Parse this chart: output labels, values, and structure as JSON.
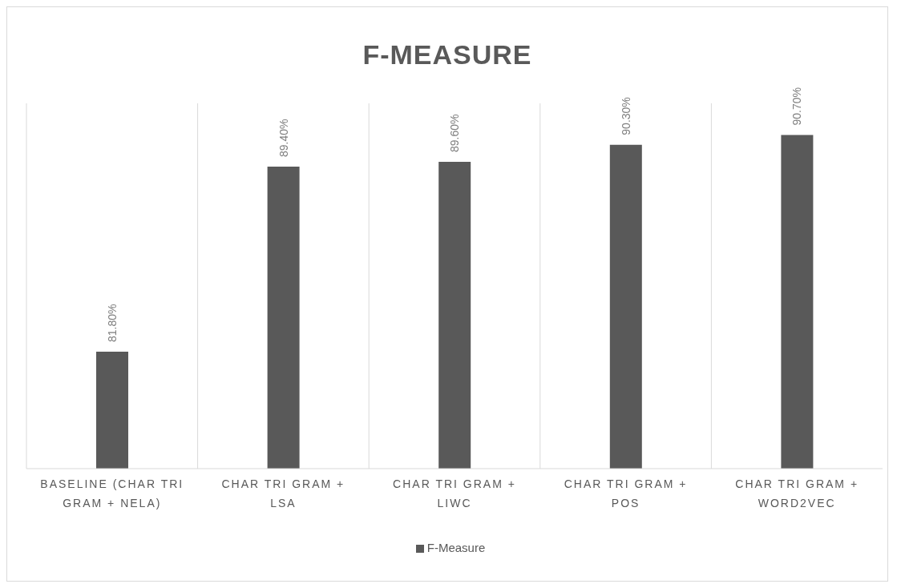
{
  "chart_data": {
    "type": "bar",
    "title": "F-MEASURE",
    "categories": [
      "BASELINE (CHAR TRI GRAM + NELA)",
      "CHAR TRI GRAM + LSA",
      "CHAR TRI GRAM + LIWC",
      "CHAR TRI GRAM + POS",
      "CHAR TRI GRAM + WORD2VEC"
    ],
    "series": [
      {
        "name": "F-Measure",
        "color": "#595959",
        "values": [
          81.8,
          89.4,
          89.6,
          90.3,
          90.7
        ],
        "value_labels": [
          "81.80%",
          "89.40%",
          "89.60%",
          "90.30%",
          "90.70%"
        ]
      }
    ],
    "ylim": [
      77,
      92
    ],
    "grid": "x",
    "legend": "bottom"
  }
}
